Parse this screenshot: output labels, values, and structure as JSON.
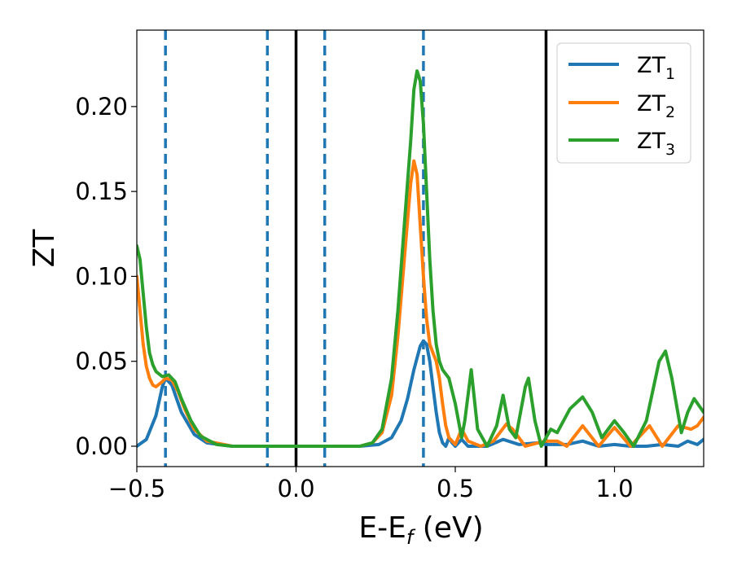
{
  "chart_data": {
    "type": "line",
    "xlabel": "E-E",
    "xlabel_sub": "f",
    "xlabel_unit": " (eV)",
    "ylabel": "ZT",
    "xlim": [
      -0.5,
      1.28
    ],
    "ylim": [
      -0.012,
      0.245
    ],
    "x_ticks": [
      -0.5,
      0.0,
      0.5,
      1.0
    ],
    "x_tick_labels": [
      "−0.5",
      "0.0",
      "0.5",
      "1.0"
    ],
    "y_ticks": [
      0.0,
      0.05,
      0.1,
      0.15,
      0.2
    ],
    "y_tick_labels": [
      "0.00",
      "0.05",
      "0.10",
      "0.15",
      "0.20"
    ],
    "legend": {
      "position": "upper right",
      "entries": [
        {
          "base": "ZT",
          "sub": "1"
        },
        {
          "base": "ZT",
          "sub": "2"
        },
        {
          "base": "ZT",
          "sub": "3"
        }
      ]
    },
    "vlines_dashed": {
      "x": [
        -0.41,
        -0.09,
        0.09,
        0.4
      ],
      "color": "#1f77b4"
    },
    "vlines_solid": {
      "x": [
        0.0,
        0.785
      ],
      "color": "#000000"
    },
    "series": [
      {
        "name": "ZT1",
        "color": "#1f77b4",
        "points": [
          [
            -0.5,
            0.0
          ],
          [
            -0.47,
            0.004
          ],
          [
            -0.44,
            0.018
          ],
          [
            -0.42,
            0.035
          ],
          [
            -0.41,
            0.04
          ],
          [
            -0.39,
            0.036
          ],
          [
            -0.36,
            0.02
          ],
          [
            -0.32,
            0.007
          ],
          [
            -0.28,
            0.002
          ],
          [
            -0.2,
            0.0
          ],
          [
            0.0,
            0.0
          ],
          [
            0.2,
            0.0
          ],
          [
            0.26,
            0.001
          ],
          [
            0.3,
            0.005
          ],
          [
            0.33,
            0.015
          ],
          [
            0.35,
            0.028
          ],
          [
            0.37,
            0.045
          ],
          [
            0.39,
            0.059
          ],
          [
            0.4,
            0.062
          ],
          [
            0.41,
            0.06
          ],
          [
            0.42,
            0.05
          ],
          [
            0.43,
            0.035
          ],
          [
            0.44,
            0.02
          ],
          [
            0.45,
            0.008
          ],
          [
            0.46,
            0.002
          ],
          [
            0.47,
            0.0
          ],
          [
            0.48,
            0.005
          ],
          [
            0.49,
            0.002
          ],
          [
            0.5,
            0.0
          ],
          [
            0.52,
            0.004
          ],
          [
            0.54,
            0.0
          ],
          [
            0.6,
            0.0
          ],
          [
            0.65,
            0.004
          ],
          [
            0.7,
            0.001
          ],
          [
            0.76,
            0.002
          ],
          [
            0.785,
            0.001
          ],
          [
            0.85,
            0.001
          ],
          [
            0.9,
            0.003
          ],
          [
            0.95,
            0.0
          ],
          [
            1.0,
            0.001
          ],
          [
            1.05,
            0.0
          ],
          [
            1.1,
            0.0
          ],
          [
            1.15,
            0.001
          ],
          [
            1.2,
            0.0
          ],
          [
            1.23,
            0.003
          ],
          [
            1.26,
            0.001
          ],
          [
            1.28,
            0.004
          ]
        ]
      },
      {
        "name": "ZT2",
        "color": "#ff7f0e",
        "points": [
          [
            -0.5,
            0.1
          ],
          [
            -0.49,
            0.08
          ],
          [
            -0.48,
            0.06
          ],
          [
            -0.47,
            0.047
          ],
          [
            -0.46,
            0.04
          ],
          [
            -0.45,
            0.036
          ],
          [
            -0.44,
            0.035
          ],
          [
            -0.42,
            0.038
          ],
          [
            -0.41,
            0.04
          ],
          [
            -0.39,
            0.039
          ],
          [
            -0.37,
            0.032
          ],
          [
            -0.35,
            0.022
          ],
          [
            -0.32,
            0.01
          ],
          [
            -0.28,
            0.003
          ],
          [
            -0.2,
            0.0
          ],
          [
            0.0,
            0.0
          ],
          [
            0.2,
            0.0
          ],
          [
            0.24,
            0.002
          ],
          [
            0.27,
            0.008
          ],
          [
            0.3,
            0.03
          ],
          [
            0.32,
            0.065
          ],
          [
            0.34,
            0.11
          ],
          [
            0.36,
            0.155
          ],
          [
            0.37,
            0.168
          ],
          [
            0.38,
            0.16
          ],
          [
            0.39,
            0.13
          ],
          [
            0.4,
            0.1
          ],
          [
            0.41,
            0.075
          ],
          [
            0.42,
            0.06
          ],
          [
            0.43,
            0.055
          ],
          [
            0.44,
            0.05
          ],
          [
            0.45,
            0.04
          ],
          [
            0.46,
            0.025
          ],
          [
            0.47,
            0.012
          ],
          [
            0.48,
            0.005
          ],
          [
            0.5,
            0.001
          ],
          [
            0.52,
            0.01
          ],
          [
            0.54,
            0.003
          ],
          [
            0.58,
            0.0
          ],
          [
            0.62,
            0.003
          ],
          [
            0.66,
            0.013
          ],
          [
            0.68,
            0.01
          ],
          [
            0.72,
            0.0
          ],
          [
            0.76,
            0.002
          ],
          [
            0.785,
            0.003
          ],
          [
            0.82,
            0.003
          ],
          [
            0.85,
            0.0
          ],
          [
            0.9,
            0.012
          ],
          [
            0.95,
            0.0
          ],
          [
            1.0,
            0.011
          ],
          [
            1.05,
            0.0
          ],
          [
            1.11,
            0.012
          ],
          [
            1.15,
            0.0
          ],
          [
            1.2,
            0.012
          ],
          [
            1.24,
            0.01
          ],
          [
            1.26,
            0.012
          ],
          [
            1.28,
            0.017
          ]
        ]
      },
      {
        "name": "ZT3",
        "color": "#2ca02c",
        "points": [
          [
            -0.5,
            0.118
          ],
          [
            -0.49,
            0.11
          ],
          [
            -0.48,
            0.09
          ],
          [
            -0.47,
            0.07
          ],
          [
            -0.46,
            0.055
          ],
          [
            -0.45,
            0.048
          ],
          [
            -0.44,
            0.044
          ],
          [
            -0.42,
            0.041
          ],
          [
            -0.4,
            0.042
          ],
          [
            -0.38,
            0.038
          ],
          [
            -0.36,
            0.028
          ],
          [
            -0.33,
            0.015
          ],
          [
            -0.3,
            0.006
          ],
          [
            -0.25,
            0.001
          ],
          [
            -0.2,
            0.0
          ],
          [
            0.0,
            0.0
          ],
          [
            0.2,
            0.0
          ],
          [
            0.24,
            0.002
          ],
          [
            0.27,
            0.01
          ],
          [
            0.3,
            0.04
          ],
          [
            0.32,
            0.08
          ],
          [
            0.34,
            0.13
          ],
          [
            0.36,
            0.18
          ],
          [
            0.37,
            0.21
          ],
          [
            0.38,
            0.221
          ],
          [
            0.39,
            0.215
          ],
          [
            0.4,
            0.19
          ],
          [
            0.41,
            0.15
          ],
          [
            0.42,
            0.11
          ],
          [
            0.43,
            0.08
          ],
          [
            0.44,
            0.06
          ],
          [
            0.45,
            0.05
          ],
          [
            0.46,
            0.045
          ],
          [
            0.48,
            0.04
          ],
          [
            0.5,
            0.025
          ],
          [
            0.52,
            0.005
          ],
          [
            0.53,
            0.015
          ],
          [
            0.55,
            0.045
          ],
          [
            0.57,
            0.01
          ],
          [
            0.6,
            0.0
          ],
          [
            0.63,
            0.012
          ],
          [
            0.65,
            0.03
          ],
          [
            0.67,
            0.01
          ],
          [
            0.69,
            0.005
          ],
          [
            0.72,
            0.035
          ],
          [
            0.73,
            0.04
          ],
          [
            0.75,
            0.015
          ],
          [
            0.77,
            0.0
          ],
          [
            0.785,
            0.005
          ],
          [
            0.8,
            0.01
          ],
          [
            0.82,
            0.008
          ],
          [
            0.86,
            0.022
          ],
          [
            0.9,
            0.029
          ],
          [
            0.93,
            0.02
          ],
          [
            0.96,
            0.005
          ],
          [
            1.0,
            0.015
          ],
          [
            1.03,
            0.008
          ],
          [
            1.06,
            0.0
          ],
          [
            1.1,
            0.015
          ],
          [
            1.14,
            0.05
          ],
          [
            1.16,
            0.056
          ],
          [
            1.18,
            0.04
          ],
          [
            1.21,
            0.008
          ],
          [
            1.23,
            0.02
          ],
          [
            1.25,
            0.028
          ],
          [
            1.28,
            0.02
          ]
        ]
      }
    ]
  }
}
